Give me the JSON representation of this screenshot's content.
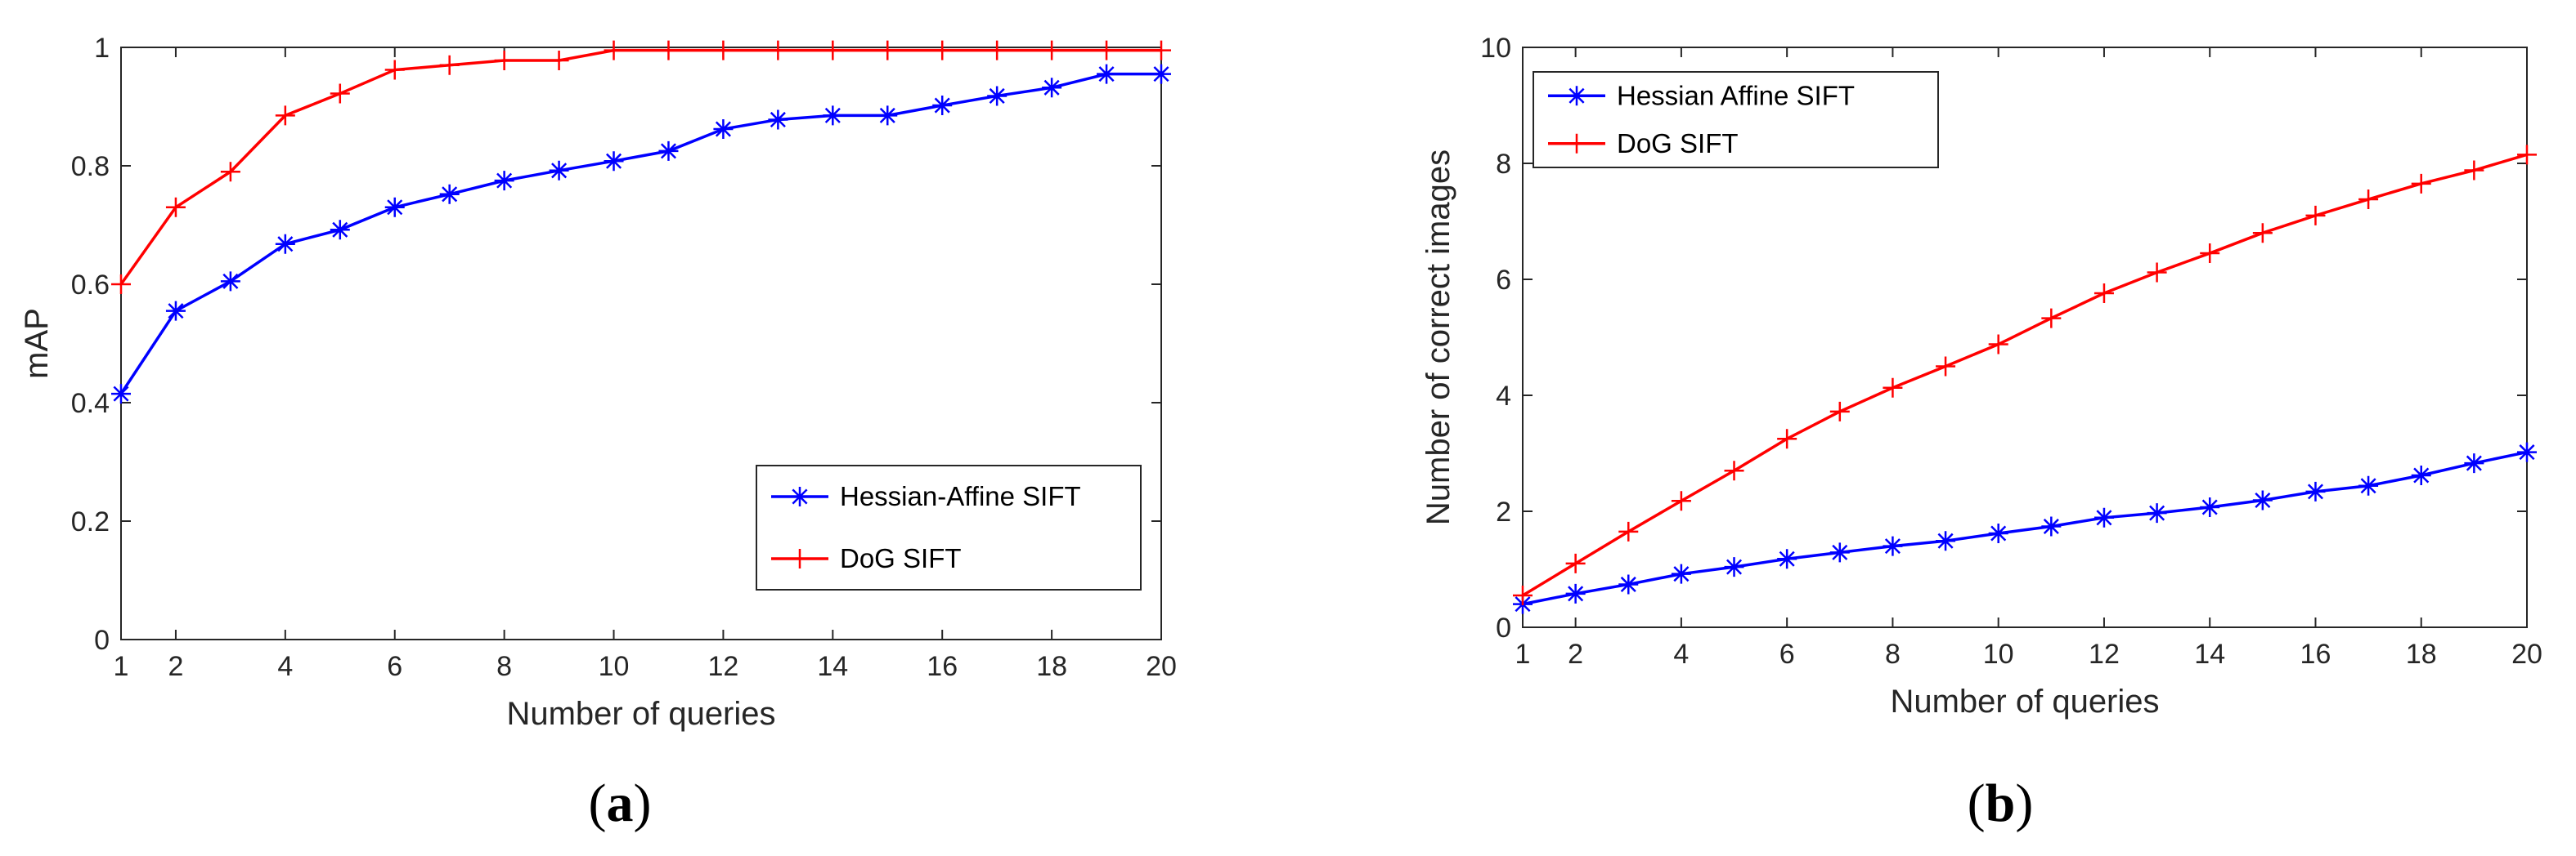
{
  "chart_data": [
    {
      "type": "line",
      "panel_label": "a",
      "xlabel": "Number of queries",
      "ylabel": "mAP",
      "xlim": [
        1,
        20
      ],
      "ylim": [
        0,
        1
      ],
      "xticks": [
        1,
        2,
        4,
        6,
        8,
        10,
        12,
        14,
        16,
        18,
        20
      ],
      "yticks": [
        0,
        0.2,
        0.4,
        0.6,
        0.8,
        1
      ],
      "ytick_labels": [
        "0",
        "0.2",
        "0.4",
        "0.6",
        "0.8",
        "1"
      ],
      "legend_position": "bottom-right",
      "x": [
        1,
        2,
        3,
        4,
        5,
        6,
        7,
        8,
        9,
        10,
        11,
        12,
        13,
        14,
        15,
        16,
        17,
        18,
        19,
        20
      ],
      "series": [
        {
          "name": "Hessian-Affine SIFT",
          "color": "#0000ff",
          "marker": "asterisk",
          "values": [
            0.415,
            0.555,
            0.605,
            0.668,
            0.692,
            0.73,
            0.752,
            0.775,
            0.792,
            0.808,
            0.825,
            0.862,
            0.878,
            0.885,
            0.885,
            0.902,
            0.918,
            0.932,
            0.955,
            0.955
          ]
        },
        {
          "name": "DoG SIFT",
          "color": "#ff0000",
          "marker": "plus",
          "values": [
            0.6,
            0.73,
            0.79,
            0.885,
            0.922,
            0.962,
            0.97,
            0.978,
            0.978,
            0.995,
            0.995,
            0.995,
            0.995,
            0.995,
            0.995,
            0.995,
            0.995,
            0.995,
            0.995,
            0.995
          ]
        }
      ]
    },
    {
      "type": "line",
      "panel_label": "b",
      "xlabel": "Number of queries",
      "ylabel": "Number of correct images",
      "xlim": [
        1,
        20
      ],
      "ylim": [
        0,
        10
      ],
      "xticks": [
        1,
        2,
        4,
        6,
        8,
        10,
        12,
        14,
        16,
        18,
        20
      ],
      "yticks": [
        0,
        2,
        4,
        6,
        8,
        10
      ],
      "ytick_labels": [
        "0",
        "2",
        "4",
        "6",
        "8",
        "10"
      ],
      "legend_position": "top-left",
      "x": [
        1,
        2,
        3,
        4,
        5,
        6,
        7,
        8,
        9,
        10,
        11,
        12,
        13,
        14,
        15,
        16,
        17,
        18,
        19,
        20
      ],
      "series": [
        {
          "name": "Hessian Affine SIFT",
          "color": "#0000ff",
          "marker": "asterisk",
          "values": [
            0.4,
            0.58,
            0.74,
            0.92,
            1.04,
            1.18,
            1.29,
            1.4,
            1.49,
            1.62,
            1.74,
            1.89,
            1.97,
            2.07,
            2.19,
            2.34,
            2.44,
            2.62,
            2.83,
            3.02
          ]
        },
        {
          "name": "DoG SIFT",
          "color": "#ff0000",
          "marker": "plus",
          "values": [
            0.55,
            1.1,
            1.65,
            2.18,
            2.7,
            3.25,
            3.72,
            4.13,
            4.5,
            4.88,
            5.33,
            5.76,
            6.12,
            6.45,
            6.8,
            7.1,
            7.38,
            7.65,
            7.88,
            8.15
          ]
        }
      ]
    }
  ]
}
